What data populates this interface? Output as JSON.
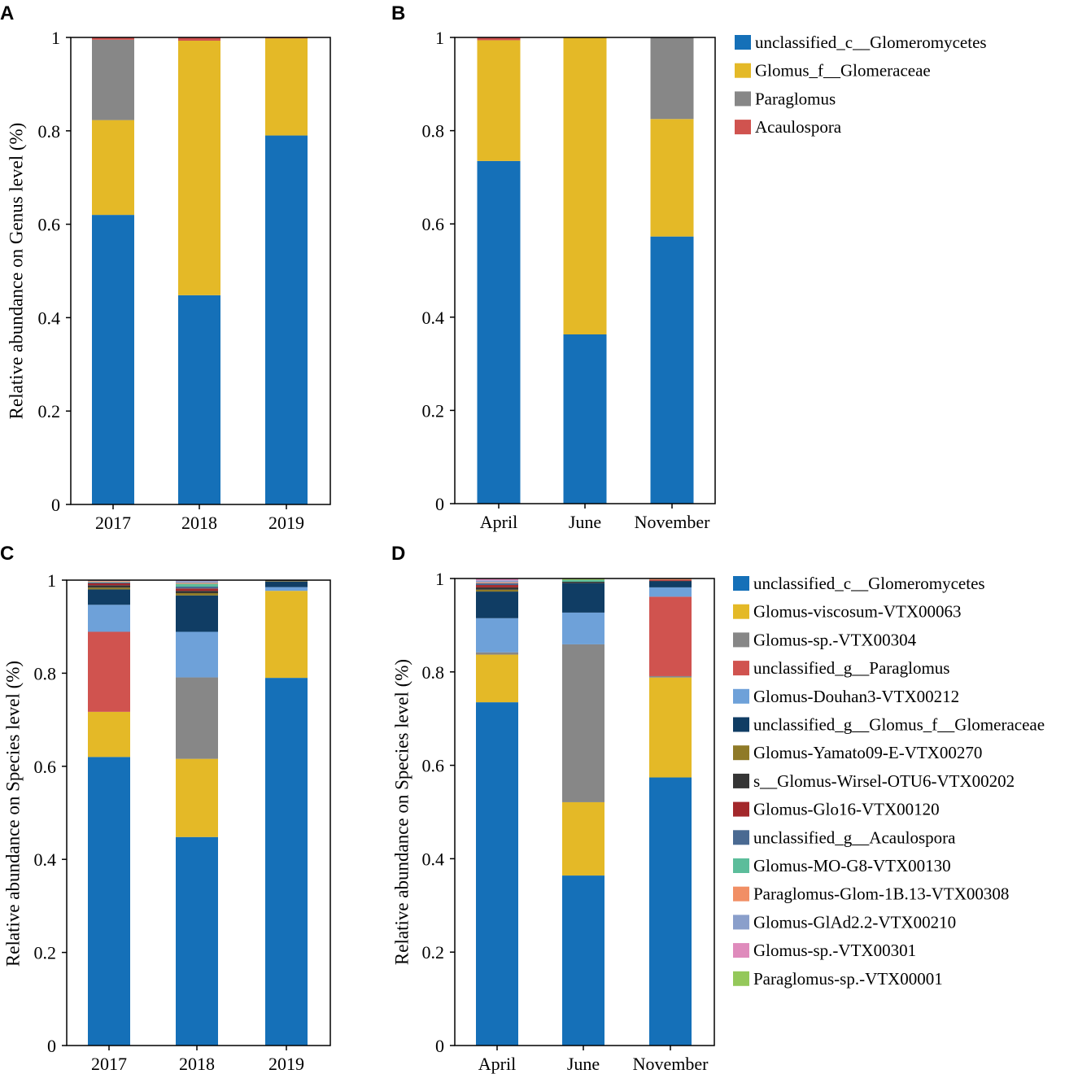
{
  "colors": {
    "unclassified_c__Glomeromycetes": "#1570b8",
    "Glomus_f__Glomeraceae": "#e4b927",
    "Paraglomus": "#878787",
    "Acaulospora": "#d0534f",
    "Glomus-viscosum-VTX00063": "#e4b927",
    "Glomus-sp.-VTX00304": "#878787",
    "unclassified_g__Paraglomus": "#d0534f",
    "Glomus-Douhan3-VTX00212": "#6ea1d9",
    "unclassified_g__Glomus_f__Glomeraceae": "#103d64",
    "Glomus-Yamato09-E-VTX00270": "#8f7a28",
    "s__Glomus-Wirsel-OTU6-VTX00202": "#353535",
    "Glomus-Glo16-VTX00120": "#a3282b",
    "unclassified_g__Acaulospora": "#4a6a92",
    "Glomus-MO-G8-VTX00130": "#5cbd9b",
    "Paraglomus-Glom-1B.13-VTX00308": "#f18f65",
    "Glomus-GlAd2.2-VTX00210": "#8a9fcb",
    "Glomus-sp.-VTX00301": "#df8bbc",
    "Paraglomus-sp.-VTX00001": "#94c85a"
  },
  "legend_genus": [
    "unclassified_c__Glomeromycetes",
    "Glomus_f__Glomeraceae",
    "Paraglomus",
    "Acaulospora"
  ],
  "legend_species": [
    "unclassified_c__Glomeromycetes",
    "Glomus-viscosum-VTX00063",
    "Glomus-sp.-VTX00304",
    "unclassified_g__Paraglomus",
    "Glomus-Douhan3-VTX00212",
    "unclassified_g__Glomus_f__Glomeraceae",
    "Glomus-Yamato09-E-VTX00270",
    "s__Glomus-Wirsel-OTU6-VTX00202",
    "Glomus-Glo16-VTX00120",
    "unclassified_g__Acaulospora",
    "Glomus-MO-G8-VTX00130",
    "Paraglomus-Glom-1B.13-VTX00308",
    "Glomus-GlAd2.2-VTX00210",
    "Glomus-sp.-VTX00301",
    "Paraglomus-sp.-VTX00001"
  ],
  "chart_data": [
    {
      "panel": "A",
      "type": "bar",
      "stacked": true,
      "ylabel": "Relative abundance on Genus level (%)",
      "ylim": [
        0,
        1
      ],
      "yticks": [
        "0",
        "0.2",
        "0.4",
        "0.6",
        "0.8",
        "1"
      ],
      "categories": [
        "2017",
        "2018",
        "2019"
      ],
      "series": [
        {
          "name": "unclassified_c__Glomeromycetes",
          "values": [
            0.62,
            0.448,
            0.79
          ]
        },
        {
          "name": "Glomus_f__Glomeraceae",
          "values": [
            0.203,
            0.545,
            0.208
          ]
        },
        {
          "name": "Paraglomus",
          "values": [
            0.172,
            0.0,
            0.0
          ]
        },
        {
          "name": "Acaulospora",
          "values": [
            0.005,
            0.007,
            0.002
          ]
        }
      ]
    },
    {
      "panel": "B",
      "type": "bar",
      "stacked": true,
      "ylabel": "",
      "ylim": [
        0,
        1
      ],
      "yticks": [
        "0",
        "0.2",
        "0.4",
        "0.6",
        "0.8",
        "1"
      ],
      "categories": [
        "April",
        "June",
        "November"
      ],
      "series": [
        {
          "name": "unclassified_c__Glomeromycetes",
          "values": [
            0.735,
            0.363,
            0.573
          ]
        },
        {
          "name": "Glomus_f__Glomeraceae",
          "values": [
            0.259,
            0.637,
            0.252
          ]
        },
        {
          "name": "Paraglomus",
          "values": [
            0.0,
            0.0,
            0.175
          ]
        },
        {
          "name": "Acaulospora",
          "values": [
            0.006,
            0.0,
            0.0
          ]
        }
      ]
    },
    {
      "panel": "C",
      "type": "bar",
      "stacked": true,
      "ylabel": "Relative abundance on Species level (%)",
      "ylim": [
        0,
        1
      ],
      "yticks": [
        "0",
        "0.2",
        "0.4",
        "0.6",
        "0.8",
        "1"
      ],
      "categories": [
        "2017",
        "2018",
        "2019"
      ],
      "series": [
        {
          "name": "unclassified_c__Glomeromycetes",
          "values": [
            0.62,
            0.448,
            0.79
          ]
        },
        {
          "name": "Glomus-viscosum-VTX00063",
          "values": [
            0.097,
            0.168,
            0.187
          ]
        },
        {
          "name": "Glomus-sp.-VTX00304",
          "values": [
            0.0,
            0.175,
            0.0
          ]
        },
        {
          "name": "unclassified_g__Paraglomus",
          "values": [
            0.172,
            0.0,
            0.0
          ]
        },
        {
          "name": "Glomus-Douhan3-VTX00212",
          "values": [
            0.058,
            0.098,
            0.008
          ]
        },
        {
          "name": "unclassified_g__Glomus_f__Glomeraceae",
          "values": [
            0.033,
            0.078,
            0.012
          ]
        },
        {
          "name": "Glomus-Yamato09-E-VTX00270",
          "values": [
            0.004,
            0.005,
            0.001
          ]
        },
        {
          "name": "s__Glomus-Wirsel-OTU6-VTX00202",
          "values": [
            0.005,
            0.005,
            0.001
          ]
        },
        {
          "name": "Glomus-Glo16-VTX00120",
          "values": [
            0.004,
            0.005,
            0.001
          ]
        },
        {
          "name": "unclassified_g__Acaulospora",
          "values": [
            0.002,
            0.004,
            0.0
          ]
        },
        {
          "name": "Glomus-MO-G8-VTX00130",
          "values": [
            0.001,
            0.006,
            0.0
          ]
        },
        {
          "name": "Paraglomus-Glom-1B.13-VTX00308",
          "values": [
            0.002,
            0.002,
            0.0
          ]
        },
        {
          "name": "Glomus-GlAd2.2-VTX00210",
          "values": [
            0.001,
            0.004,
            0.0
          ]
        },
        {
          "name": "Glomus-sp.-VTX00301",
          "values": [
            0.001,
            0.002,
            0.0
          ]
        },
        {
          "name": "Paraglomus-sp.-VTX00001",
          "values": [
            0.0,
            0.0,
            0.0
          ]
        }
      ]
    },
    {
      "panel": "D",
      "type": "bar",
      "stacked": true,
      "ylabel": "Relative abundance on Species level (%)",
      "ylim": [
        0,
        1
      ],
      "yticks": [
        "0",
        "0.2",
        "0.4",
        "0.6",
        "0.8",
        "1"
      ],
      "categories": [
        "April",
        "June",
        "November"
      ],
      "series": [
        {
          "name": "unclassified_c__Glomeromycetes",
          "values": [
            0.735,
            0.364,
            0.574
          ]
        },
        {
          "name": "Glomus-viscosum-VTX00063",
          "values": [
            0.102,
            0.157,
            0.214
          ]
        },
        {
          "name": "Glomus-sp.-VTX00304",
          "values": [
            0.005,
            0.338,
            0.003
          ]
        },
        {
          "name": "unclassified_g__Paraglomus",
          "values": [
            0.0,
            0.0,
            0.17
          ]
        },
        {
          "name": "Glomus-Douhan3-VTX00212",
          "values": [
            0.073,
            0.068,
            0.02
          ]
        },
        {
          "name": "unclassified_g__Glomus_f__Glomeraceae",
          "values": [
            0.057,
            0.063,
            0.013
          ]
        },
        {
          "name": "Glomus-Yamato09-E-VTX00270",
          "values": [
            0.004,
            0.0,
            0.0
          ]
        },
        {
          "name": "s__Glomus-Wirsel-OTU6-VTX00202",
          "values": [
            0.005,
            0.003,
            0.001
          ]
        },
        {
          "name": "Glomus-Glo16-VTX00120",
          "values": [
            0.005,
            0.0,
            0.002
          ]
        },
        {
          "name": "unclassified_g__Acaulospora",
          "values": [
            0.004,
            0.0,
            0.0
          ]
        },
        {
          "name": "Glomus-MO-G8-VTX00130",
          "values": [
            0.0,
            0.004,
            0.0
          ]
        },
        {
          "name": "Paraglomus-Glom-1B.13-VTX00308",
          "values": [
            0.002,
            0.0,
            0.003
          ]
        },
        {
          "name": "Glomus-GlAd2.2-VTX00210",
          "values": [
            0.004,
            0.0,
            0.0
          ]
        },
        {
          "name": "Glomus-sp.-VTX00301",
          "values": [
            0.004,
            0.0,
            0.0
          ]
        },
        {
          "name": "Paraglomus-sp.-VTX00001",
          "values": [
            0.0,
            0.003,
            0.0
          ]
        }
      ]
    }
  ]
}
